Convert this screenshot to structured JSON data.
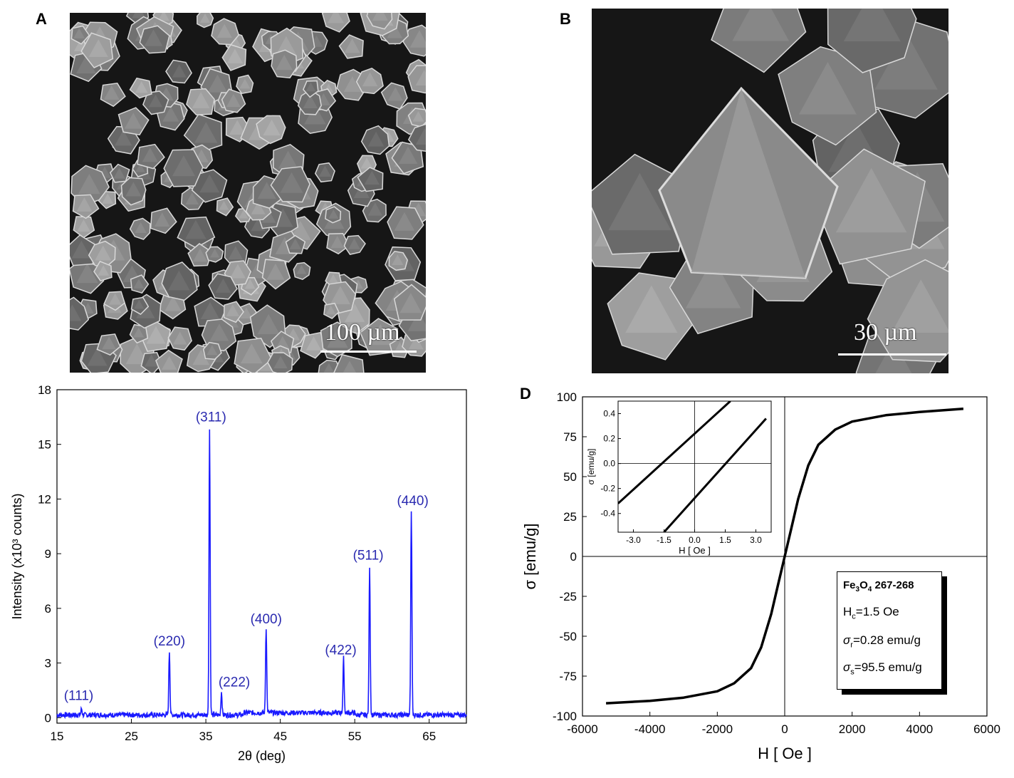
{
  "panels": {
    "A": {
      "letter": "A",
      "scalebar": "100 µm"
    },
    "B": {
      "letter": "B",
      "scalebar": "30 µm"
    },
    "D": {
      "letter": "D"
    }
  },
  "legend": {
    "sample_formula": "Fe",
    "sample_sub": "3",
    "sample_formula2": "O",
    "sample_sub2": "4",
    "sample_id": " 267-268",
    "hc_label": "H",
    "hc_sub": "c",
    "hc_value": "=1.5 Oe",
    "sr_label": "σ",
    "sr_sub": "r",
    "sr_value": "=0.28 emu/g",
    "ss_label": "σ",
    "ss_sub": "s",
    "ss_value": "=95.5 emu/g"
  },
  "colors": {
    "xrd": "#1a1aff",
    "peak_label": "#2a2ab0",
    "hysteresis": "#000000"
  },
  "chart_data": [
    {
      "type": "line",
      "xlabel": "2θ (deg)",
      "ylabel": "Intensity (x10³ counts)",
      "xlim": [
        15,
        70
      ],
      "ylim": [
        -0.3,
        18
      ],
      "xticks": [
        15,
        25,
        35,
        45,
        55,
        65
      ],
      "yticks": [
        0,
        3,
        6,
        9,
        12,
        15,
        18
      ],
      "peaks": [
        {
          "x": 18.3,
          "y": 0.35,
          "label": "(111)"
        },
        {
          "x": 30.1,
          "y": 3.5,
          "label": "(220)"
        },
        {
          "x": 35.5,
          "y": 15.8,
          "label": "(311)"
        },
        {
          "x": 37.1,
          "y": 1.25,
          "label": "(222)"
        },
        {
          "x": 43.1,
          "y": 4.7,
          "label": "(400)"
        },
        {
          "x": 53.5,
          "y": 3.0,
          "label": "(422)"
        },
        {
          "x": 57.0,
          "y": 8.2,
          "label": "(511)"
        },
        {
          "x": 62.6,
          "y": 11.2,
          "label": "(440)"
        }
      ],
      "baseline": 0.15
    },
    {
      "type": "line",
      "xlabel": "H [ Oe ]",
      "ylabel": "σ [emu/g]",
      "xlim": [
        -6000,
        6000
      ],
      "ylim": [
        -100,
        100
      ],
      "xticks": [
        -6000,
        -4000,
        -2000,
        0,
        2000,
        4000,
        6000
      ],
      "yticks": [
        -100,
        -75,
        -50,
        -25,
        0,
        25,
        50,
        75,
        100
      ],
      "series": [
        {
          "x": [
            -5300,
            -4000,
            -3000,
            -2000,
            -1500,
            -1000,
            -700,
            -400,
            -200,
            0,
            200,
            400,
            700,
            1000,
            1500,
            2000,
            3000,
            4000,
            5300
          ],
          "y": [
            -92,
            -90.5,
            -88.5,
            -84.5,
            -79.5,
            -70,
            -57,
            -36,
            -18,
            0,
            18,
            36,
            57,
            70,
            79.5,
            84.5,
            88.5,
            90.5,
            92.5
          ]
        }
      ],
      "inset": {
        "xlabel": "H [ Oe ]",
        "ylabel": "σ [emu/g]",
        "xlim": [
          -3.75,
          3.75
        ],
        "ylim": [
          -0.55,
          0.5
        ],
        "xticks": [
          -3.0,
          -1.5,
          0.0,
          1.5,
          3.0
        ],
        "yticks": [
          -0.4,
          -0.2,
          0.0,
          0.2,
          0.4
        ],
        "series": [
          {
            "x": [
              -3.75,
              1.75
            ],
            "y": [
              -0.32,
              0.5
            ]
          },
          {
            "x": [
              -1.5,
              3.5
            ],
            "y": [
              -0.55,
              0.36
            ]
          }
        ]
      }
    }
  ]
}
